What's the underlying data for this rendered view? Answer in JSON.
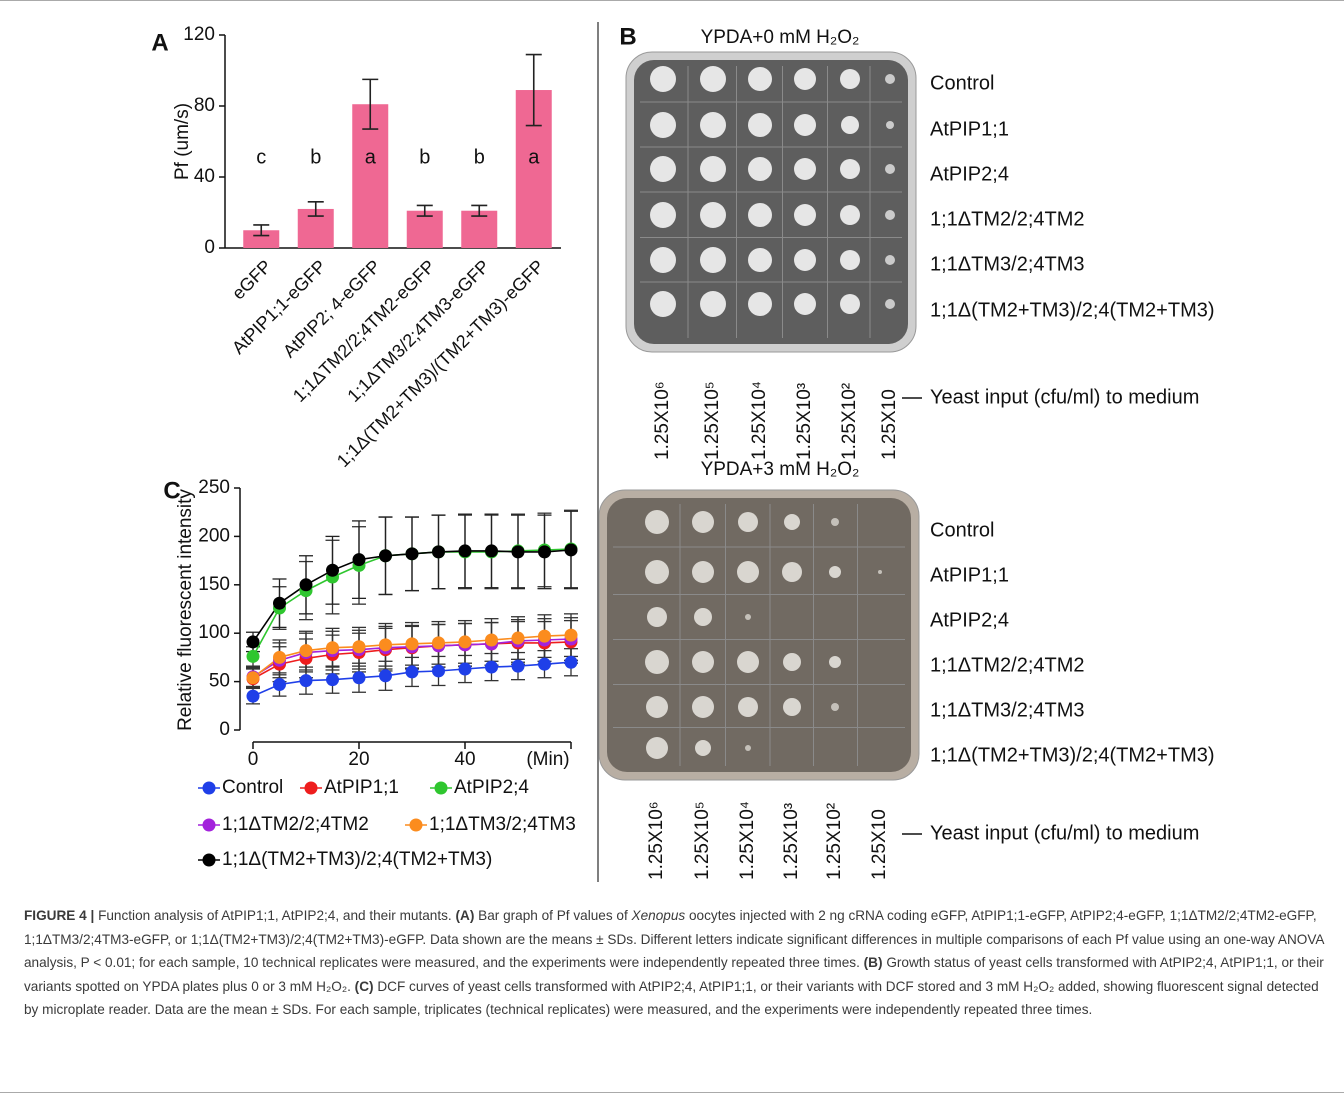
{
  "chart_data": [
    {
      "type": "bar",
      "panel_label": "A",
      "ylabel": "Pf (um/s)",
      "categories": [
        "eGFP",
        "AtPIP1;1-eGFP",
        "AtPIP2; 4-eGFP",
        "1;1ΔTM2/2;4TM2-eGFP",
        "1;1ΔTM3/2;4TM3-eGFP",
        "1;1Δ(TM2+TM3)/(TM2+TM3)-eGFP"
      ],
      "values": [
        10,
        22,
        81,
        21,
        21,
        89
      ],
      "errors": [
        3,
        4,
        14,
        3,
        3,
        20
      ],
      "letters": [
        "c",
        "b",
        "a",
        "b",
        "b",
        "a"
      ],
      "color": "#ef6893",
      "ylim": [
        0,
        120
      ],
      "yticks": [
        0,
        40,
        80,
        120
      ]
    },
    {
      "type": "line",
      "panel_label": "C",
      "ylabel": "Relative fluorescent intensity",
      "xlabel": "(Min)",
      "x": [
        0,
        5,
        10,
        15,
        20,
        25,
        30,
        35,
        40,
        45,
        50,
        55,
        60
      ],
      "xlim": [
        0,
        60
      ],
      "xticks": [
        0,
        20,
        40
      ],
      "ylim": [
        0,
        250
      ],
      "yticks": [
        0,
        50,
        100,
        150,
        200,
        250
      ],
      "series": [
        {
          "name": "Control",
          "color": "#1f3fe8",
          "values": [
            35,
            47,
            51,
            52,
            54,
            56,
            60,
            61,
            63,
            65,
            66,
            68,
            70
          ],
          "errors": [
            8,
            12,
            14,
            14,
            15,
            15,
            15,
            15,
            14,
            14,
            14,
            14,
            14
          ]
        },
        {
          "name": "AtPIP1;1",
          "color": "#ee1d1d",
          "values": [
            53,
            68,
            74,
            78,
            80,
            83,
            85,
            87,
            88,
            89,
            90,
            90,
            91
          ],
          "errors": [
            10,
            18,
            20,
            20,
            20,
            22,
            22,
            22,
            22,
            22,
            22,
            22,
            22
          ]
        },
        {
          "name": "AtPIP2;4",
          "color": "#2fc62f",
          "values": [
            76,
            126,
            144,
            158,
            170,
            180,
            182,
            184,
            184,
            184,
            185,
            186,
            187
          ],
          "errors": [
            10,
            22,
            30,
            38,
            40,
            40,
            38,
            38,
            38,
            38,
            38,
            38,
            40
          ]
        },
        {
          "name": "1;1ΔTM2/2;4TM2",
          "color": "#a322dc",
          "values": [
            55,
            72,
            80,
            82,
            83,
            85,
            86,
            87,
            88,
            89,
            92,
            93,
            94
          ],
          "errors": [
            10,
            18,
            20,
            20,
            20,
            22,
            22,
            22,
            22,
            22,
            22,
            22,
            22
          ]
        },
        {
          "name": "1;1ΔTM3/2;4TM3",
          "color": "#fb8c1e",
          "values": [
            54,
            75,
            82,
            85,
            86,
            88,
            89,
            90,
            91,
            93,
            95,
            97,
            98
          ],
          "errors": [
            10,
            18,
            20,
            20,
            20,
            22,
            22,
            22,
            22,
            22,
            22,
            22,
            22
          ]
        },
        {
          "name": "1;1Δ(TM2+TM3)/2;4(TM2+TM3)",
          "color": "#000000",
          "values": [
            91,
            131,
            150,
            165,
            176,
            180,
            182,
            184,
            185,
            185,
            184,
            184,
            186
          ],
          "errors": [
            10,
            25,
            30,
            35,
            40,
            40,
            38,
            38,
            38,
            38,
            38,
            38,
            40
          ]
        }
      ]
    }
  ],
  "panel_b": {
    "panel_label": "B",
    "plate_titles": [
      "YPDA+0 mM H₂O₂",
      "YPDA+3 mM H₂O₂"
    ],
    "rows": [
      "Control",
      "AtPIP1;1",
      "AtPIP2;4",
      "1;1ΔTM2/2;4TM2",
      "1;1ΔTM3/2;4TM3",
      "1;1Δ(TM2+TM3)/2;4(TM2+TM3)"
    ],
    "dilutions": [
      "1.25X10⁶",
      "1.25X10⁵",
      "1.25X10⁴",
      "1.25X10³",
      "1.25X10²",
      "1.25X10"
    ],
    "input_label": "Yeast input (cfu/ml) to medium"
  },
  "caption": {
    "parts": [
      "FIGURE 4 |",
      "Function analysis of AtPIP1;1, AtPIP2;4, and their mutants.",
      "(A)",
      "Bar graph of Pf values of",
      "Xenopus",
      "oocytes injected with 2 ng cRNA coding eGFP, AtPIP1;1-eGFP, AtPIP2;4-eGFP, 1;1ΔTM2/2;4TM2-eGFP, 1;1ΔTM3/2;4TM3-eGFP, or 1;1Δ(TM2+TM3)/2;4(TM2+TM3)-eGFP. Data shown are the means ± SDs. Different letters indicate significant differences in multiple comparisons of each Pf value using an one-way ANOVA analysis, P < 0.01; for each sample, 10 technical replicates were measured, and the experiments were independently repeated three times.",
      "(B)",
      "Growth status of yeast cells transformed with AtPIP2;4, AtPIP1;1, or their variants spotted on YPDA plates plus 0 or 3 mM H₂O₂.",
      "(C)",
      "DCF curves of yeast cells transformed with AtPIP2;4, AtPIP1;1, or their variants with DCF stored and 3 mM H₂O₂ added, showing fluorescent signal detected by microplate reader. Data are the mean ± SDs. For each sample, triplicates (technical replicates) were measured, and the experiments were independently repeated three times."
    ]
  }
}
